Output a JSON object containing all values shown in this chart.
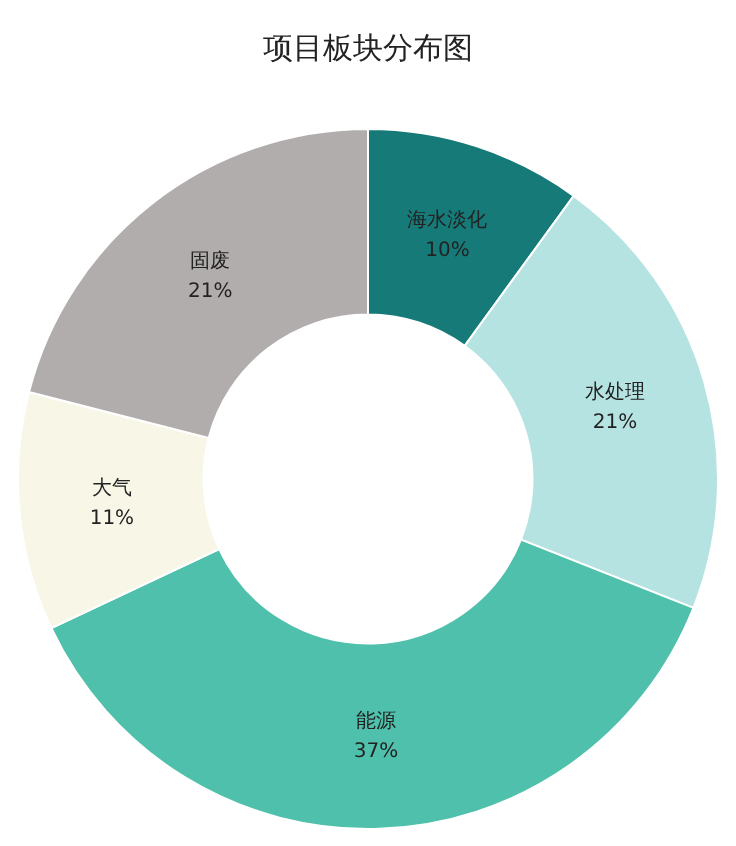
{
  "chart_data": {
    "type": "donut",
    "title": "项目板块分布图",
    "categories": [
      "海水淡化",
      "水处理",
      "能源",
      "大气",
      "固废"
    ],
    "values": [
      10,
      21,
      37,
      11,
      21
    ],
    "value_labels": [
      "10%",
      "21%",
      "37%",
      "11%",
      "21%"
    ],
    "colors": [
      "#167a78",
      "#b5e3e2",
      "#4fc0ab",
      "#f8f6e6",
      "#b1adac"
    ],
    "legend": false
  }
}
